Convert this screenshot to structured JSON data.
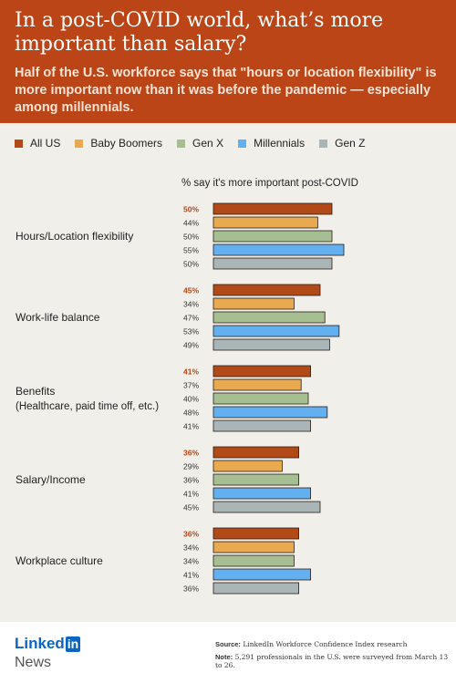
{
  "header": {
    "title": "In a post-COVID world, what’s more important than salary?",
    "subtitle": "Half of the U.S. workforce says that \"hours or location flexibility\" is more important now than it was before the pandemic — especially among millennials."
  },
  "colors": {
    "background": "#f1efe9",
    "header": "#bb4516",
    "label_highlight": "#bb4516"
  },
  "chart_data": {
    "type": "bar",
    "orientation": "horizontal",
    "xlabel": "% say it's more important post-COVID",
    "xlim": [
      0,
      100
    ],
    "grid": false,
    "legend_position": "top",
    "value_suffix": "%",
    "categories": [
      "Hours/Location flexibility",
      "Work-life balance",
      "Benefits\n(Healthcare, paid time off, etc.)",
      "Salary/Income",
      "Workplace culture"
    ],
    "series": [
      {
        "name": "All US",
        "color": "#b24a17",
        "values": [
          50,
          45,
          41,
          36,
          36
        ]
      },
      {
        "name": "Baby Boomers",
        "color": "#e8a94f",
        "values": [
          44,
          34,
          37,
          29,
          34
        ]
      },
      {
        "name": "Gen X",
        "color": "#a5bf92",
        "values": [
          50,
          47,
          40,
          36,
          34
        ]
      },
      {
        "name": "Millennials",
        "color": "#62b0ef",
        "values": [
          55,
          53,
          48,
          41,
          41
        ]
      },
      {
        "name": "Gen Z",
        "color": "#a9b5b7",
        "values": [
          50,
          49,
          41,
          45,
          36
        ]
      }
    ]
  },
  "footer": {
    "logo_linked": "Linked",
    "logo_in": "in",
    "news": "News",
    "source_label": "Source:",
    "source_text": "LinkedIn Workforce Confidence Index research",
    "note_label": "Note:",
    "note_text": "5,291 professionals in the U.S. were surveyed from March 13 to 26."
  }
}
